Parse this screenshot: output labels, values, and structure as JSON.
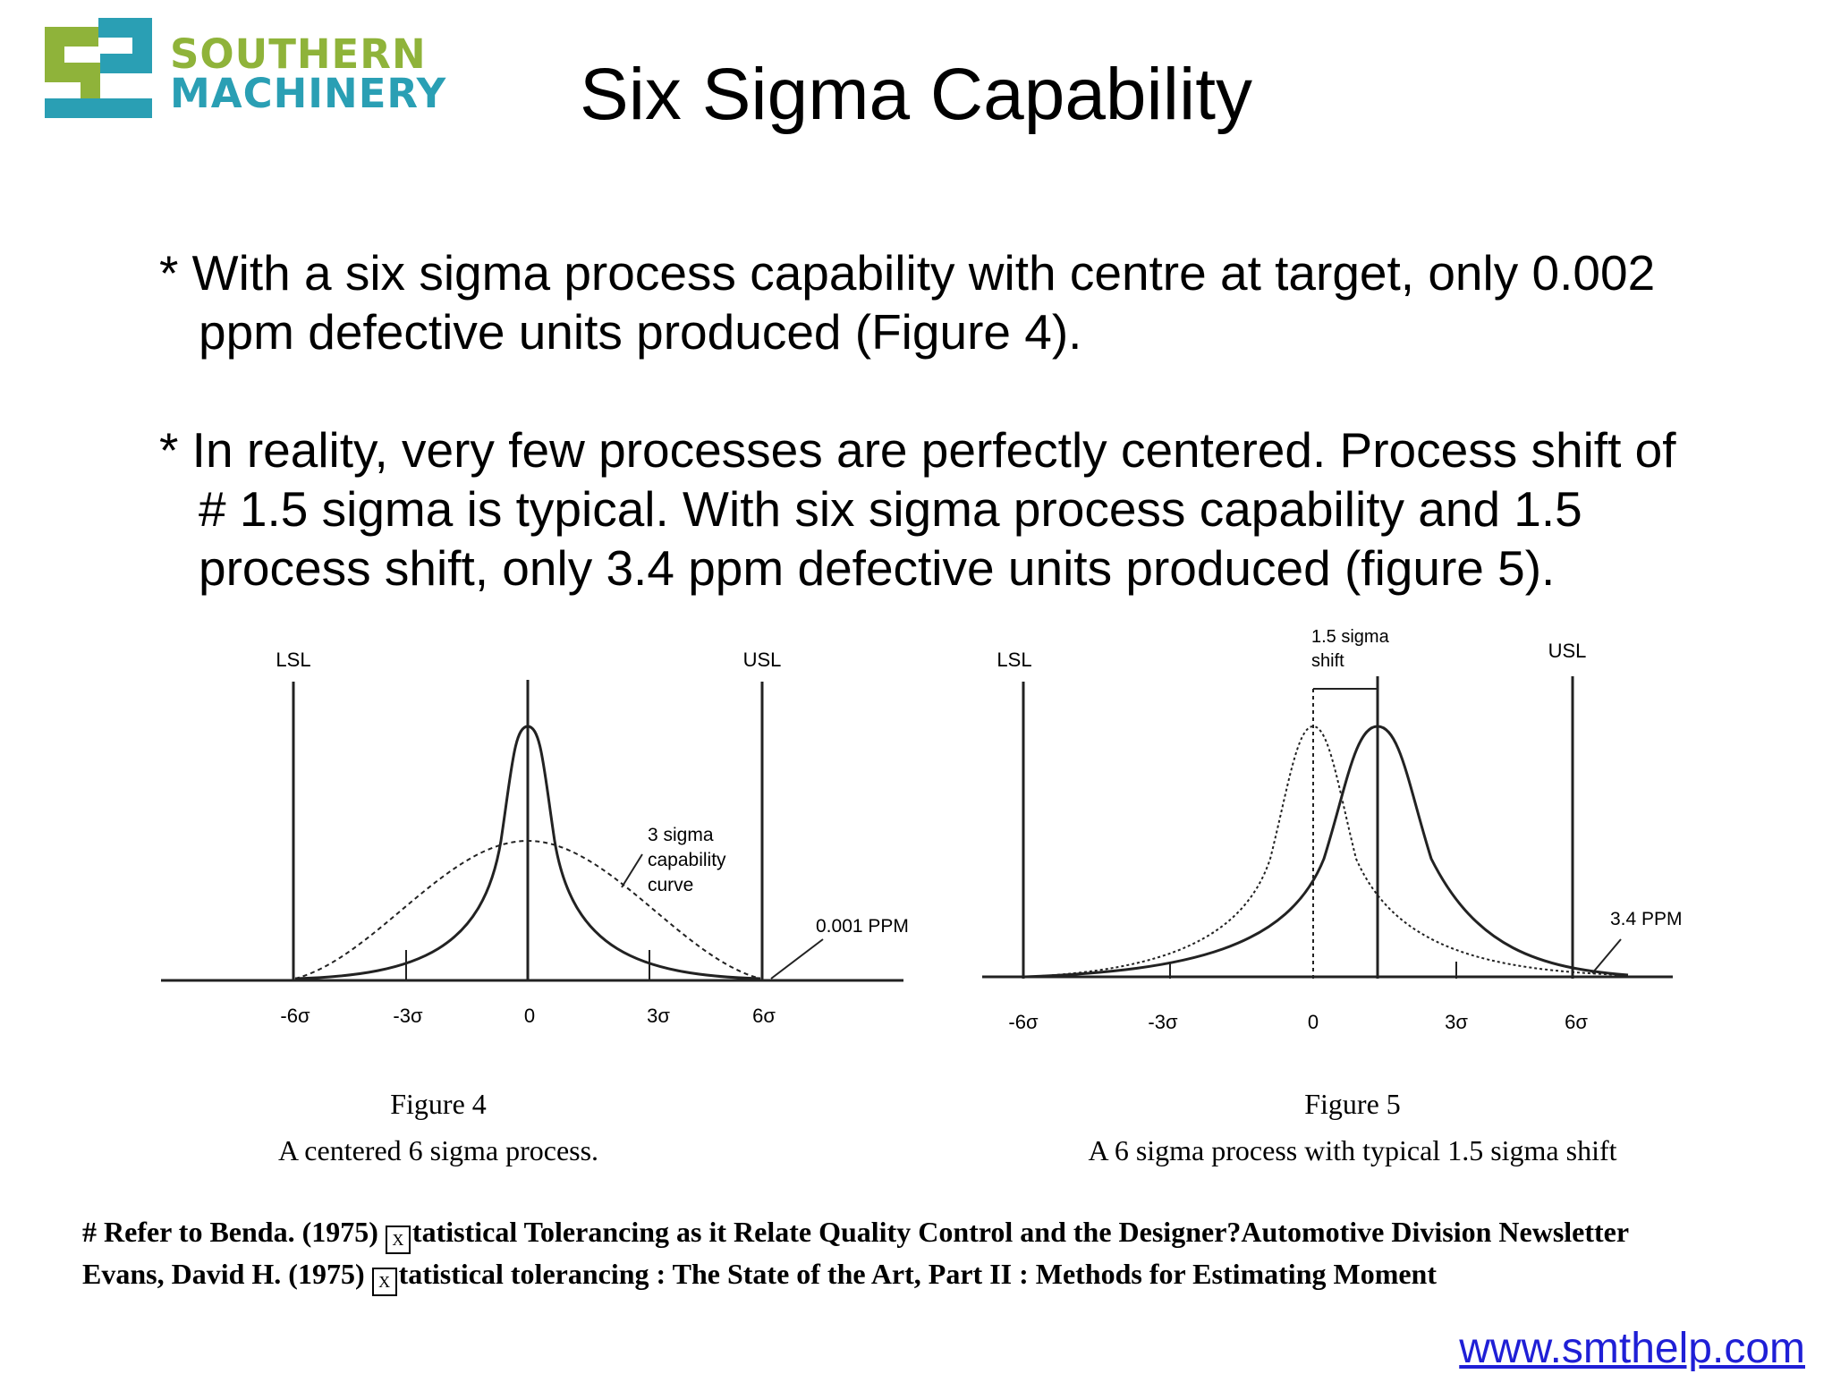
{
  "header": {
    "logo_line1": "SOUTHERN",
    "logo_line2": "MACHINERY",
    "title": "Six Sigma Capability",
    "logo_colors": {
      "teal": "#2a9fb4",
      "green": "#8fb33a"
    }
  },
  "bullets": [
    {
      "lines": [
        "* With a six sigma process capability with centre at target, only 0.002",
        "ppm defective units produced (Figure 4)."
      ]
    },
    {
      "lines": [
        "* In reality, very few processes are perfectly centered.  Process shift of",
        "# 1.5 sigma is typical.  With six sigma process capability and 1.5",
        "process shift, only 3.4 ppm defective units produced (figure 5)."
      ]
    }
  ],
  "figure4": {
    "lsl": "LSL",
    "usl": "USL",
    "ticks": [
      "-6σ",
      "-3σ",
      "0",
      "3σ",
      "6σ"
    ],
    "annotation_curve": [
      "3 sigma",
      "capability",
      "curve"
    ],
    "annotation_ppm": "0.001 PPM",
    "caption_title": "Figure 4",
    "caption_text": "A centered 6 sigma process."
  },
  "figure5": {
    "lsl": "LSL",
    "usl": "USL",
    "shift_label": [
      "1.5 sigma",
      "shift"
    ],
    "ticks": [
      "-6σ",
      "-3σ",
      "0",
      "3σ",
      "6σ"
    ],
    "annotation_ppm": "3.4 PPM",
    "caption_title": "Figure 5",
    "caption_text": "A 6 sigma process with typical 1.5 sigma shift"
  },
  "references": {
    "line1_prefix": "# Refer to Benda. (1975) ",
    "line1_rest": "tatistical Tolerancing as it Relate Quality Control and the Designer?Automotive Division Newsletter",
    "line2_prefix": "Evans, David H. (1975) ",
    "line2_rest": "tatistical tolerancing : The State of the Art, Part II : Methods for Estimating Moment",
    "box_glyph": "X"
  },
  "footer": {
    "url": "www.smthelp.com",
    "url_color": "#1f1fd6"
  }
}
